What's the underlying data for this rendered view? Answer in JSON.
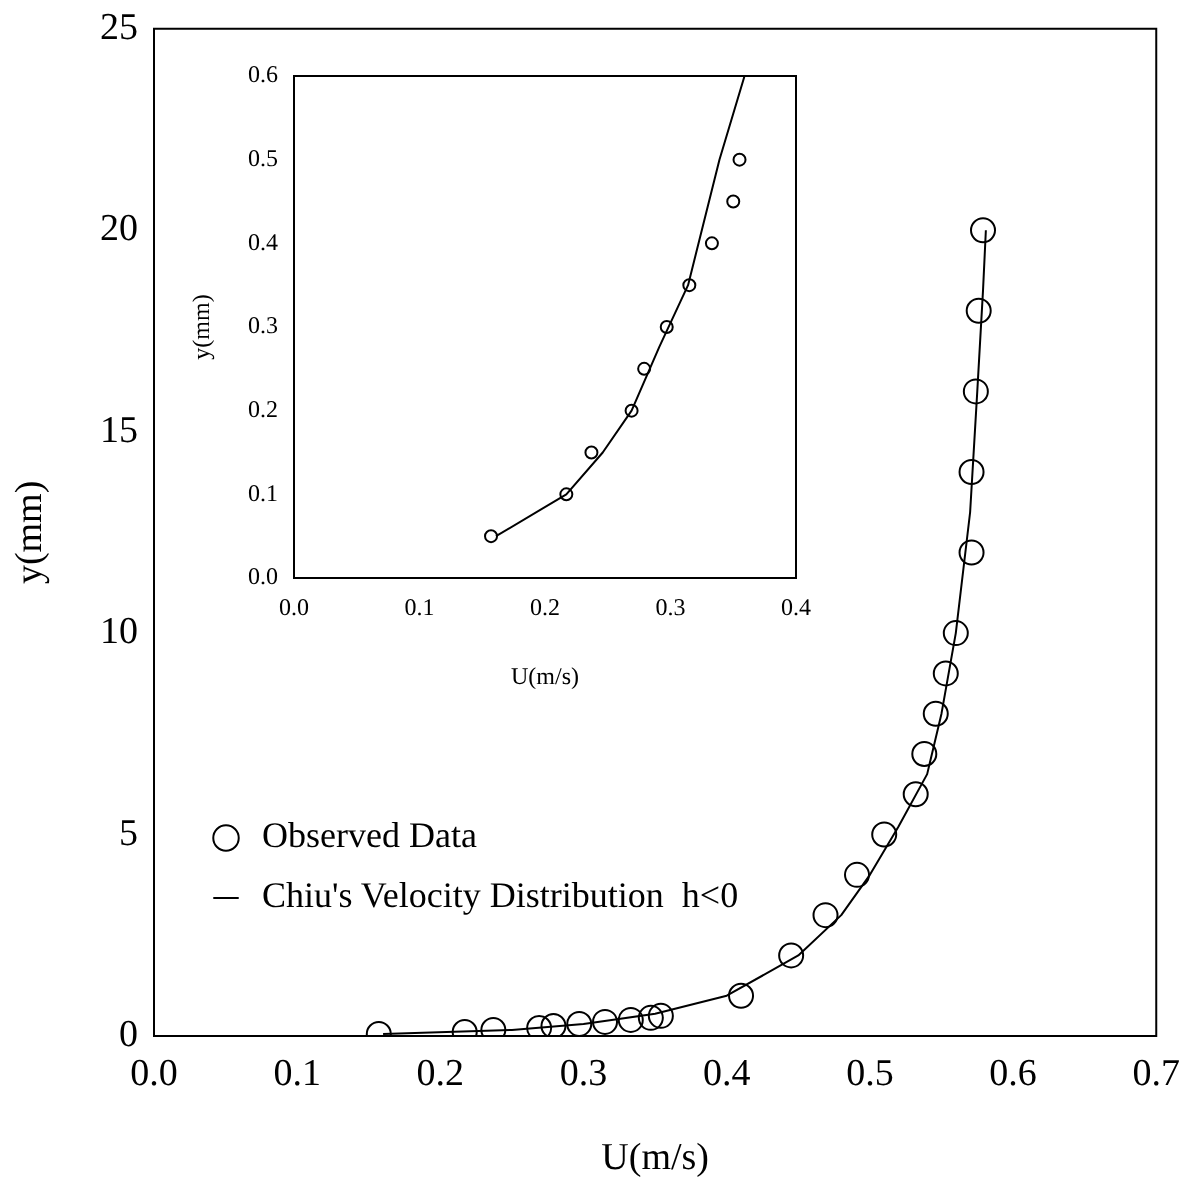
{
  "chart_data": [
    {
      "type": "scatter",
      "xlabel": "U(m/s)",
      "ylabel": "y(mm)",
      "xlim": [
        0,
        0.7
      ],
      "xticks": [
        {
          "value": 0,
          "label": "0.0"
        },
        0.1,
        0.2,
        0.3,
        0.4,
        0.5,
        0.6,
        0.7
      ],
      "ylim": [
        0,
        25
      ],
      "yticks": [
        0,
        5,
        10,
        15,
        20,
        25
      ],
      "grid": false,
      "legend": "left",
      "series": [
        {
          "name": "Observed Data",
          "marker": "circle",
          "color": "#000000",
          "x": [
            0.157,
            0.217,
            0.237,
            0.269,
            0.279,
            0.297,
            0.315,
            0.333,
            0.347,
            0.354,
            0.41,
            0.445,
            0.469,
            0.491,
            0.51,
            0.532,
            0.538,
            0.546,
            0.553,
            0.56,
            0.571,
            0.571,
            0.574,
            0.576,
            0.579
          ],
          "values": [
            0.05,
            0.1,
            0.15,
            0.2,
            0.25,
            0.3,
            0.35,
            0.4,
            0.45,
            0.5,
            1,
            2,
            3,
            4,
            5,
            6,
            7,
            8,
            9,
            10,
            12,
            14,
            16,
            18,
            20
          ]
        },
        {
          "name": "Chiu's Velocity Distribution  h<0",
          "type": "line",
          "marker": "none",
          "color": "#000000",
          "x": [
            0.16,
            0.25,
            0.3,
            0.35,
            0.4,
            0.45,
            0.48,
            0.5,
            0.52,
            0.54,
            0.55,
            0.56,
            0.57,
            0.575,
            0.579,
            0.581
          ],
          "values": [
            0.05,
            0.15,
            0.3,
            0.55,
            1.0,
            2.0,
            3.0,
            4.0,
            5.2,
            6.5,
            8,
            10,
            13,
            16,
            18.5,
            20
          ]
        }
      ]
    },
    {
      "type": "scatter",
      "xlabel": "U(m/s)",
      "ylabel": "y(mm)",
      "xlim": [
        0,
        0.4
      ],
      "xticks": [
        {
          "value": 0,
          "label": "0.0"
        },
        0.1,
        0.2,
        0.3,
        0.4
      ],
      "ylim": [
        0,
        0.6
      ],
      "yticks": [
        {
          "value": 0,
          "label": "0.0"
        },
        0.1,
        0.2,
        0.3,
        0.4,
        0.5,
        0.6
      ],
      "grid": false,
      "legend": false,
      "series": [
        {
          "marker": "circle",
          "color": "#000000",
          "x": [
            0.157,
            0.217,
            0.237,
            0.269,
            0.279,
            0.297,
            0.315,
            0.333,
            0.35,
            0.355
          ],
          "values": [
            0.05,
            0.1,
            0.15,
            0.2,
            0.25,
            0.3,
            0.35,
            0.4,
            0.45,
            0.5
          ]
        },
        {
          "type": "line",
          "marker": "none",
          "color": "#000000",
          "x": [
            0.161,
            0.217,
            0.246,
            0.269,
            0.291,
            0.314,
            0.339,
            0.359
          ],
          "values": [
            0.05,
            0.1,
            0.15,
            0.2,
            0.276,
            0.35,
            0.5,
            0.6
          ]
        }
      ]
    }
  ]
}
